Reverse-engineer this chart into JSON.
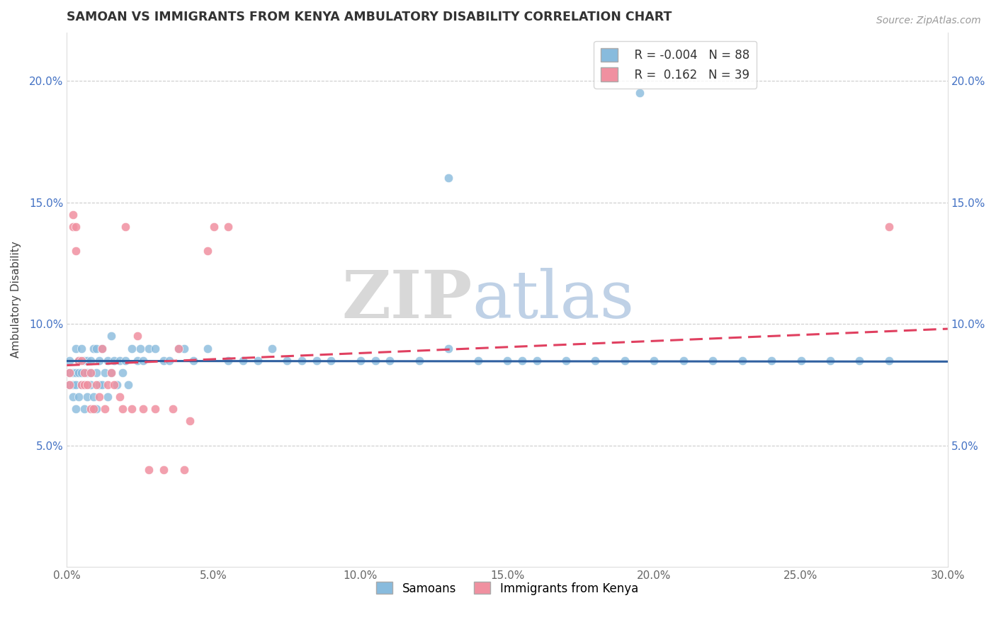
{
  "title": "SAMOAN VS IMMIGRANTS FROM KENYA AMBULATORY DISABILITY CORRELATION CHART",
  "source": "Source: ZipAtlas.com",
  "ylabel_label": "Ambulatory Disability",
  "xmin": 0.0,
  "xmax": 0.3,
  "ymin": 0.0,
  "ymax": 0.22,
  "xticks": [
    0.0,
    0.05,
    0.1,
    0.15,
    0.2,
    0.25,
    0.3
  ],
  "xtick_labels": [
    "0.0%",
    "5.0%",
    "10.0%",
    "15.0%",
    "20.0%",
    "25.0%",
    "30.0%"
  ],
  "yticks": [
    0.05,
    0.1,
    0.15,
    0.2
  ],
  "ytick_labels": [
    "5.0%",
    "10.0%",
    "15.0%",
    "20.0%"
  ],
  "legend_R_blue": "-0.004",
  "legend_N_blue": "88",
  "legend_R_pink": "0.162",
  "legend_N_pink": "39",
  "blue_color": "#88bbdd",
  "pink_color": "#f090a0",
  "blue_line_color": "#3060a0",
  "pink_line_color": "#e04060",
  "watermark_zip": "ZIP",
  "watermark_atlas": "atlas",
  "samoans_label": "Samoans",
  "kenya_label": "Immigrants from Kenya",
  "samoans_x": [
    0.001,
    0.001,
    0.001,
    0.002,
    0.002,
    0.002,
    0.003,
    0.003,
    0.003,
    0.003,
    0.004,
    0.004,
    0.004,
    0.005,
    0.005,
    0.005,
    0.006,
    0.006,
    0.006,
    0.007,
    0.007,
    0.007,
    0.008,
    0.008,
    0.008,
    0.009,
    0.009,
    0.01,
    0.01,
    0.01,
    0.011,
    0.011,
    0.012,
    0.012,
    0.013,
    0.014,
    0.014,
    0.015,
    0.015,
    0.016,
    0.017,
    0.018,
    0.019,
    0.02,
    0.021,
    0.022,
    0.024,
    0.025,
    0.026,
    0.028,
    0.03,
    0.033,
    0.035,
    0.038,
    0.04,
    0.043,
    0.048,
    0.055,
    0.06,
    0.065,
    0.07,
    0.075,
    0.08,
    0.085,
    0.09,
    0.1,
    0.105,
    0.11,
    0.12,
    0.13,
    0.14,
    0.15,
    0.155,
    0.16,
    0.17,
    0.18,
    0.19,
    0.2,
    0.21,
    0.22,
    0.23,
    0.24,
    0.25,
    0.26,
    0.27,
    0.28,
    0.13,
    0.195
  ],
  "samoans_y": [
    0.075,
    0.08,
    0.085,
    0.07,
    0.075,
    0.08,
    0.065,
    0.075,
    0.08,
    0.09,
    0.07,
    0.08,
    0.085,
    0.075,
    0.08,
    0.09,
    0.065,
    0.075,
    0.085,
    0.07,
    0.08,
    0.085,
    0.075,
    0.08,
    0.085,
    0.07,
    0.09,
    0.065,
    0.08,
    0.09,
    0.075,
    0.085,
    0.075,
    0.09,
    0.08,
    0.07,
    0.085,
    0.08,
    0.095,
    0.085,
    0.075,
    0.085,
    0.08,
    0.085,
    0.075,
    0.09,
    0.085,
    0.09,
    0.085,
    0.09,
    0.09,
    0.085,
    0.085,
    0.09,
    0.09,
    0.085,
    0.09,
    0.085,
    0.085,
    0.085,
    0.09,
    0.085,
    0.085,
    0.085,
    0.085,
    0.085,
    0.085,
    0.085,
    0.085,
    0.09,
    0.085,
    0.085,
    0.085,
    0.085,
    0.085,
    0.085,
    0.085,
    0.085,
    0.085,
    0.085,
    0.085,
    0.085,
    0.085,
    0.085,
    0.085,
    0.085,
    0.16,
    0.195
  ],
  "kenya_x": [
    0.001,
    0.001,
    0.002,
    0.002,
    0.003,
    0.003,
    0.004,
    0.005,
    0.005,
    0.006,
    0.006,
    0.007,
    0.008,
    0.008,
    0.009,
    0.01,
    0.011,
    0.012,
    0.013,
    0.014,
    0.015,
    0.016,
    0.018,
    0.019,
    0.02,
    0.022,
    0.024,
    0.026,
    0.028,
    0.03,
    0.033,
    0.036,
    0.038,
    0.04,
    0.042,
    0.048,
    0.05,
    0.055,
    0.28
  ],
  "kenya_y": [
    0.075,
    0.08,
    0.14,
    0.145,
    0.14,
    0.13,
    0.085,
    0.075,
    0.085,
    0.08,
    0.075,
    0.075,
    0.08,
    0.065,
    0.065,
    0.075,
    0.07,
    0.09,
    0.065,
    0.075,
    0.08,
    0.075,
    0.07,
    0.065,
    0.14,
    0.065,
    0.095,
    0.065,
    0.04,
    0.065,
    0.04,
    0.065,
    0.09,
    0.04,
    0.06,
    0.13,
    0.14,
    0.14,
    0.14
  ]
}
